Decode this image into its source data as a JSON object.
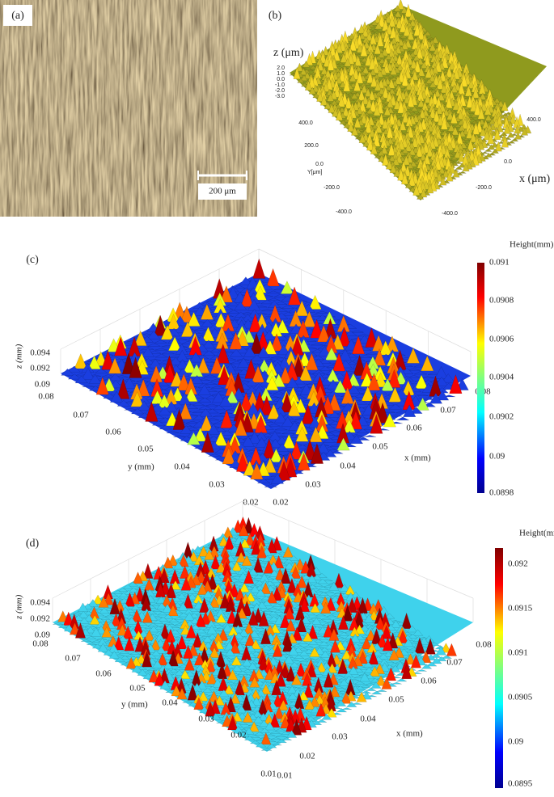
{
  "panels": [
    {
      "label": "(a)",
      "scale_bar": "200 μm"
    },
    {
      "label": "(b)",
      "z_label": "z (μm)",
      "z_ticks": [
        "2.0",
        "1.0",
        "0.0",
        "-1.0",
        "-2.0",
        "-3.0"
      ],
      "y_label": "Y[μm]",
      "y_ticks": [
        "400.0",
        "200.0",
        "0.0",
        "-200.0",
        "-400.0"
      ],
      "x_label": "x (μm)",
      "x_ticks": [
        "400.0",
        "0.0",
        "-200.0",
        "-400.0"
      ]
    },
    {
      "label": "(c)",
      "colorbar_title": "Height(mm)",
      "colorbar_ticks": [
        "0.091",
        "0.0908",
        "0.0906",
        "0.0904",
        "0.0902",
        "0.09",
        "0.0898"
      ],
      "z_label": "z (mm)",
      "z_ticks": [
        "0.094",
        "0.092",
        "0.09"
      ],
      "y_label": "y (mm)",
      "y_ticks": [
        "0.08",
        "0.07",
        "0.06",
        "0.05",
        "0.04",
        "0.03",
        "0.02"
      ],
      "x_label": "x (mm)",
      "x_ticks": [
        "0.02",
        "0.03",
        "0.04",
        "0.05",
        "0.06",
        "0.07",
        "0.08"
      ]
    },
    {
      "label": "(d)",
      "colorbar_title": "Height(mm)",
      "colorbar_ticks": [
        "0.092",
        "0.0915",
        "0.091",
        "0.0905",
        "0.09",
        "0.0895"
      ],
      "z_label": "z (mm)",
      "z_ticks": [
        "0.094",
        "0.092",
        "0.09"
      ],
      "y_label": "y (mm)",
      "y_ticks": [
        "0.08",
        "0.07",
        "0.06",
        "0.05",
        "0.04",
        "0.03",
        "0.02",
        "0.01"
      ],
      "x_label": "x (mm)",
      "x_ticks": [
        "0.01",
        "0.02",
        "0.03",
        "0.04",
        "0.05",
        "0.06",
        "0.07",
        "0.08"
      ]
    }
  ]
}
